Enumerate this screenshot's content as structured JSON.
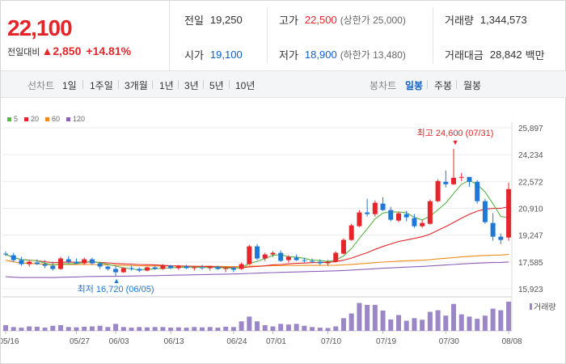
{
  "summary": {
    "price": "22,100",
    "change_label": "전일대비",
    "change_arrow": "▲",
    "change": "2,850",
    "change_pct": "+14.81%"
  },
  "info": {
    "prev_label": "전일",
    "prev": "19,250",
    "high_label": "고가",
    "high": "22,500",
    "upper_limit": "(상한가 25,000)",
    "volume_label": "거래량",
    "volume": "1,344,573",
    "open_label": "시가",
    "open": "19,100",
    "low_label": "저가",
    "low": "18,900",
    "lower_limit": "(하한가 13,480)",
    "amount_label": "거래대금",
    "amount": "28,842",
    "amount_unit": "백만"
  },
  "toolbar": {
    "line_label": "선차트",
    "line_periods": [
      "1일",
      "1주일",
      "3개월",
      "1년",
      "3년",
      "5년",
      "10년"
    ],
    "candle_label": "봉차트",
    "candle_periods": [
      "일봉",
      "주봉",
      "월봉"
    ],
    "active_candle": "일봉"
  },
  "colors": {
    "up": "#e4262b",
    "down": "#1f78d8",
    "ma5": "#5ab348",
    "ma20": "#e4262b",
    "ma60": "#ef8a17",
    "ma120": "#8e5fb8",
    "volume": "#9b87c7"
  },
  "chart_data": {
    "type": "candlestick",
    "legend": [
      {
        "name": "5",
        "color": "#5ab348"
      },
      {
        "name": "20",
        "color": "#e4262b"
      },
      {
        "name": "60",
        "color": "#ef8a17"
      },
      {
        "name": "120",
        "color": "#8e5fb8"
      }
    ],
    "y_ticks": [
      "25,897",
      "24,234",
      "22,572",
      "20,910",
      "19,247",
      "17,585",
      "15,923"
    ],
    "ylim": [
      15923,
      25897
    ],
    "x_ticks": [
      "05/16",
      "05/27",
      "06/03",
      "06/13",
      "06/24",
      "07/01",
      "07/10",
      "07/19",
      "07/30",
      "08/08"
    ],
    "annotations": {
      "high": "최고 24,600 (07/31)",
      "low": "최저 16,720 (06/05)"
    },
    "volume_label": "거래량",
    "candles": [
      [
        18100,
        18250,
        17950,
        18050
      ],
      [
        18000,
        18150,
        17600,
        17700
      ],
      [
        17700,
        17900,
        17350,
        17450
      ],
      [
        17450,
        17700,
        17300,
        17600
      ],
      [
        17550,
        17750,
        17400,
        17450
      ],
      [
        17450,
        17700,
        17200,
        17350
      ],
      [
        17350,
        17600,
        17050,
        17150
      ],
      [
        17150,
        17900,
        17100,
        17800
      ],
      [
        17750,
        17950,
        17500,
        17600
      ],
      [
        17600,
        17800,
        17450,
        17500
      ],
      [
        17500,
        17850,
        17400,
        17750
      ],
      [
        17750,
        17850,
        17400,
        17500
      ],
      [
        17500,
        17600,
        17150,
        17300
      ],
      [
        17300,
        17350,
        17050,
        17150
      ],
      [
        17150,
        17300,
        16720,
        16950
      ],
      [
        16950,
        17250,
        16900,
        17200
      ],
      [
        17200,
        17350,
        17050,
        17150
      ],
      [
        17150,
        17250,
        16950,
        17050
      ],
      [
        17050,
        17300,
        17000,
        17250
      ],
      [
        17250,
        17350,
        17100,
        17150
      ],
      [
        17150,
        17450,
        17100,
        17400
      ],
      [
        17350,
        17400,
        17150,
        17200
      ],
      [
        17200,
        17400,
        17100,
        17300
      ],
      [
        17300,
        17400,
        17150,
        17200
      ],
      [
        17200,
        17300,
        17050,
        17250
      ],
      [
        17250,
        17400,
        17100,
        17200
      ],
      [
        17200,
        17350,
        17050,
        17300
      ],
      [
        17300,
        17350,
        17100,
        17150
      ],
      [
        17150,
        17250,
        16950,
        17200
      ],
      [
        17200,
        17300,
        16950,
        17100
      ],
      [
        17150,
        17550,
        17100,
        17450
      ],
      [
        17450,
        18650,
        17400,
        18550
      ],
      [
        18550,
        18700,
        17700,
        17800
      ],
      [
        17800,
        18150,
        17650,
        18050
      ],
      [
        18050,
        18250,
        17900,
        18150
      ],
      [
        18150,
        18300,
        17600,
        17650
      ],
      [
        17700,
        18000,
        17550,
        17900
      ],
      [
        17850,
        18050,
        17650,
        17700
      ],
      [
        17700,
        17850,
        17550,
        17650
      ],
      [
        17650,
        17800,
        17500,
        17600
      ],
      [
        17600,
        17750,
        17400,
        17500
      ],
      [
        17500,
        17700,
        17350,
        17600
      ],
      [
        17600,
        18250,
        17550,
        18150
      ],
      [
        18100,
        19050,
        18050,
        18950
      ],
      [
        18950,
        19950,
        18900,
        19850
      ],
      [
        19800,
        20800,
        19750,
        20650
      ],
      [
        20650,
        21500,
        20400,
        20550
      ],
      [
        20550,
        21400,
        20400,
        21250
      ],
      [
        21200,
        21600,
        20750,
        20800
      ],
      [
        20800,
        21000,
        20100,
        20200
      ],
      [
        20150,
        20700,
        20050,
        20600
      ],
      [
        20550,
        20750,
        20100,
        20350
      ],
      [
        20300,
        20550,
        19700,
        19800
      ],
      [
        19800,
        20200,
        19700,
        20000
      ],
      [
        19950,
        21450,
        19900,
        21350
      ],
      [
        21350,
        22700,
        21300,
        22600
      ],
      [
        22550,
        23250,
        22200,
        22400
      ],
      [
        22400,
        24600,
        22350,
        22800
      ],
      [
        22800,
        23100,
        22600,
        22850
      ],
      [
        22850,
        22850,
        22250,
        22550
      ],
      [
        22550,
        22650,
        21200,
        21350
      ],
      [
        21350,
        21500,
        19950,
        20050
      ],
      [
        20000,
        20600,
        18900,
        19150
      ],
      [
        19150,
        19350,
        18700,
        18950
      ],
      [
        19100,
        22500,
        18900,
        22100
      ]
    ],
    "volume": [
      18,
      12,
      10,
      14,
      13,
      10,
      16,
      18,
      12,
      11,
      13,
      14,
      16,
      12,
      22,
      12,
      10,
      12,
      11,
      12,
      12,
      10,
      11,
      10,
      12,
      11,
      12,
      10,
      13,
      12,
      30,
      45,
      30,
      18,
      14,
      22,
      20,
      22,
      16,
      12,
      10,
      9,
      14,
      40,
      55,
      88,
      82,
      82,
      64,
      36,
      50,
      32,
      40,
      35,
      60,
      65,
      48,
      85,
      52,
      45,
      38,
      48,
      70,
      65,
      92
    ]
  }
}
